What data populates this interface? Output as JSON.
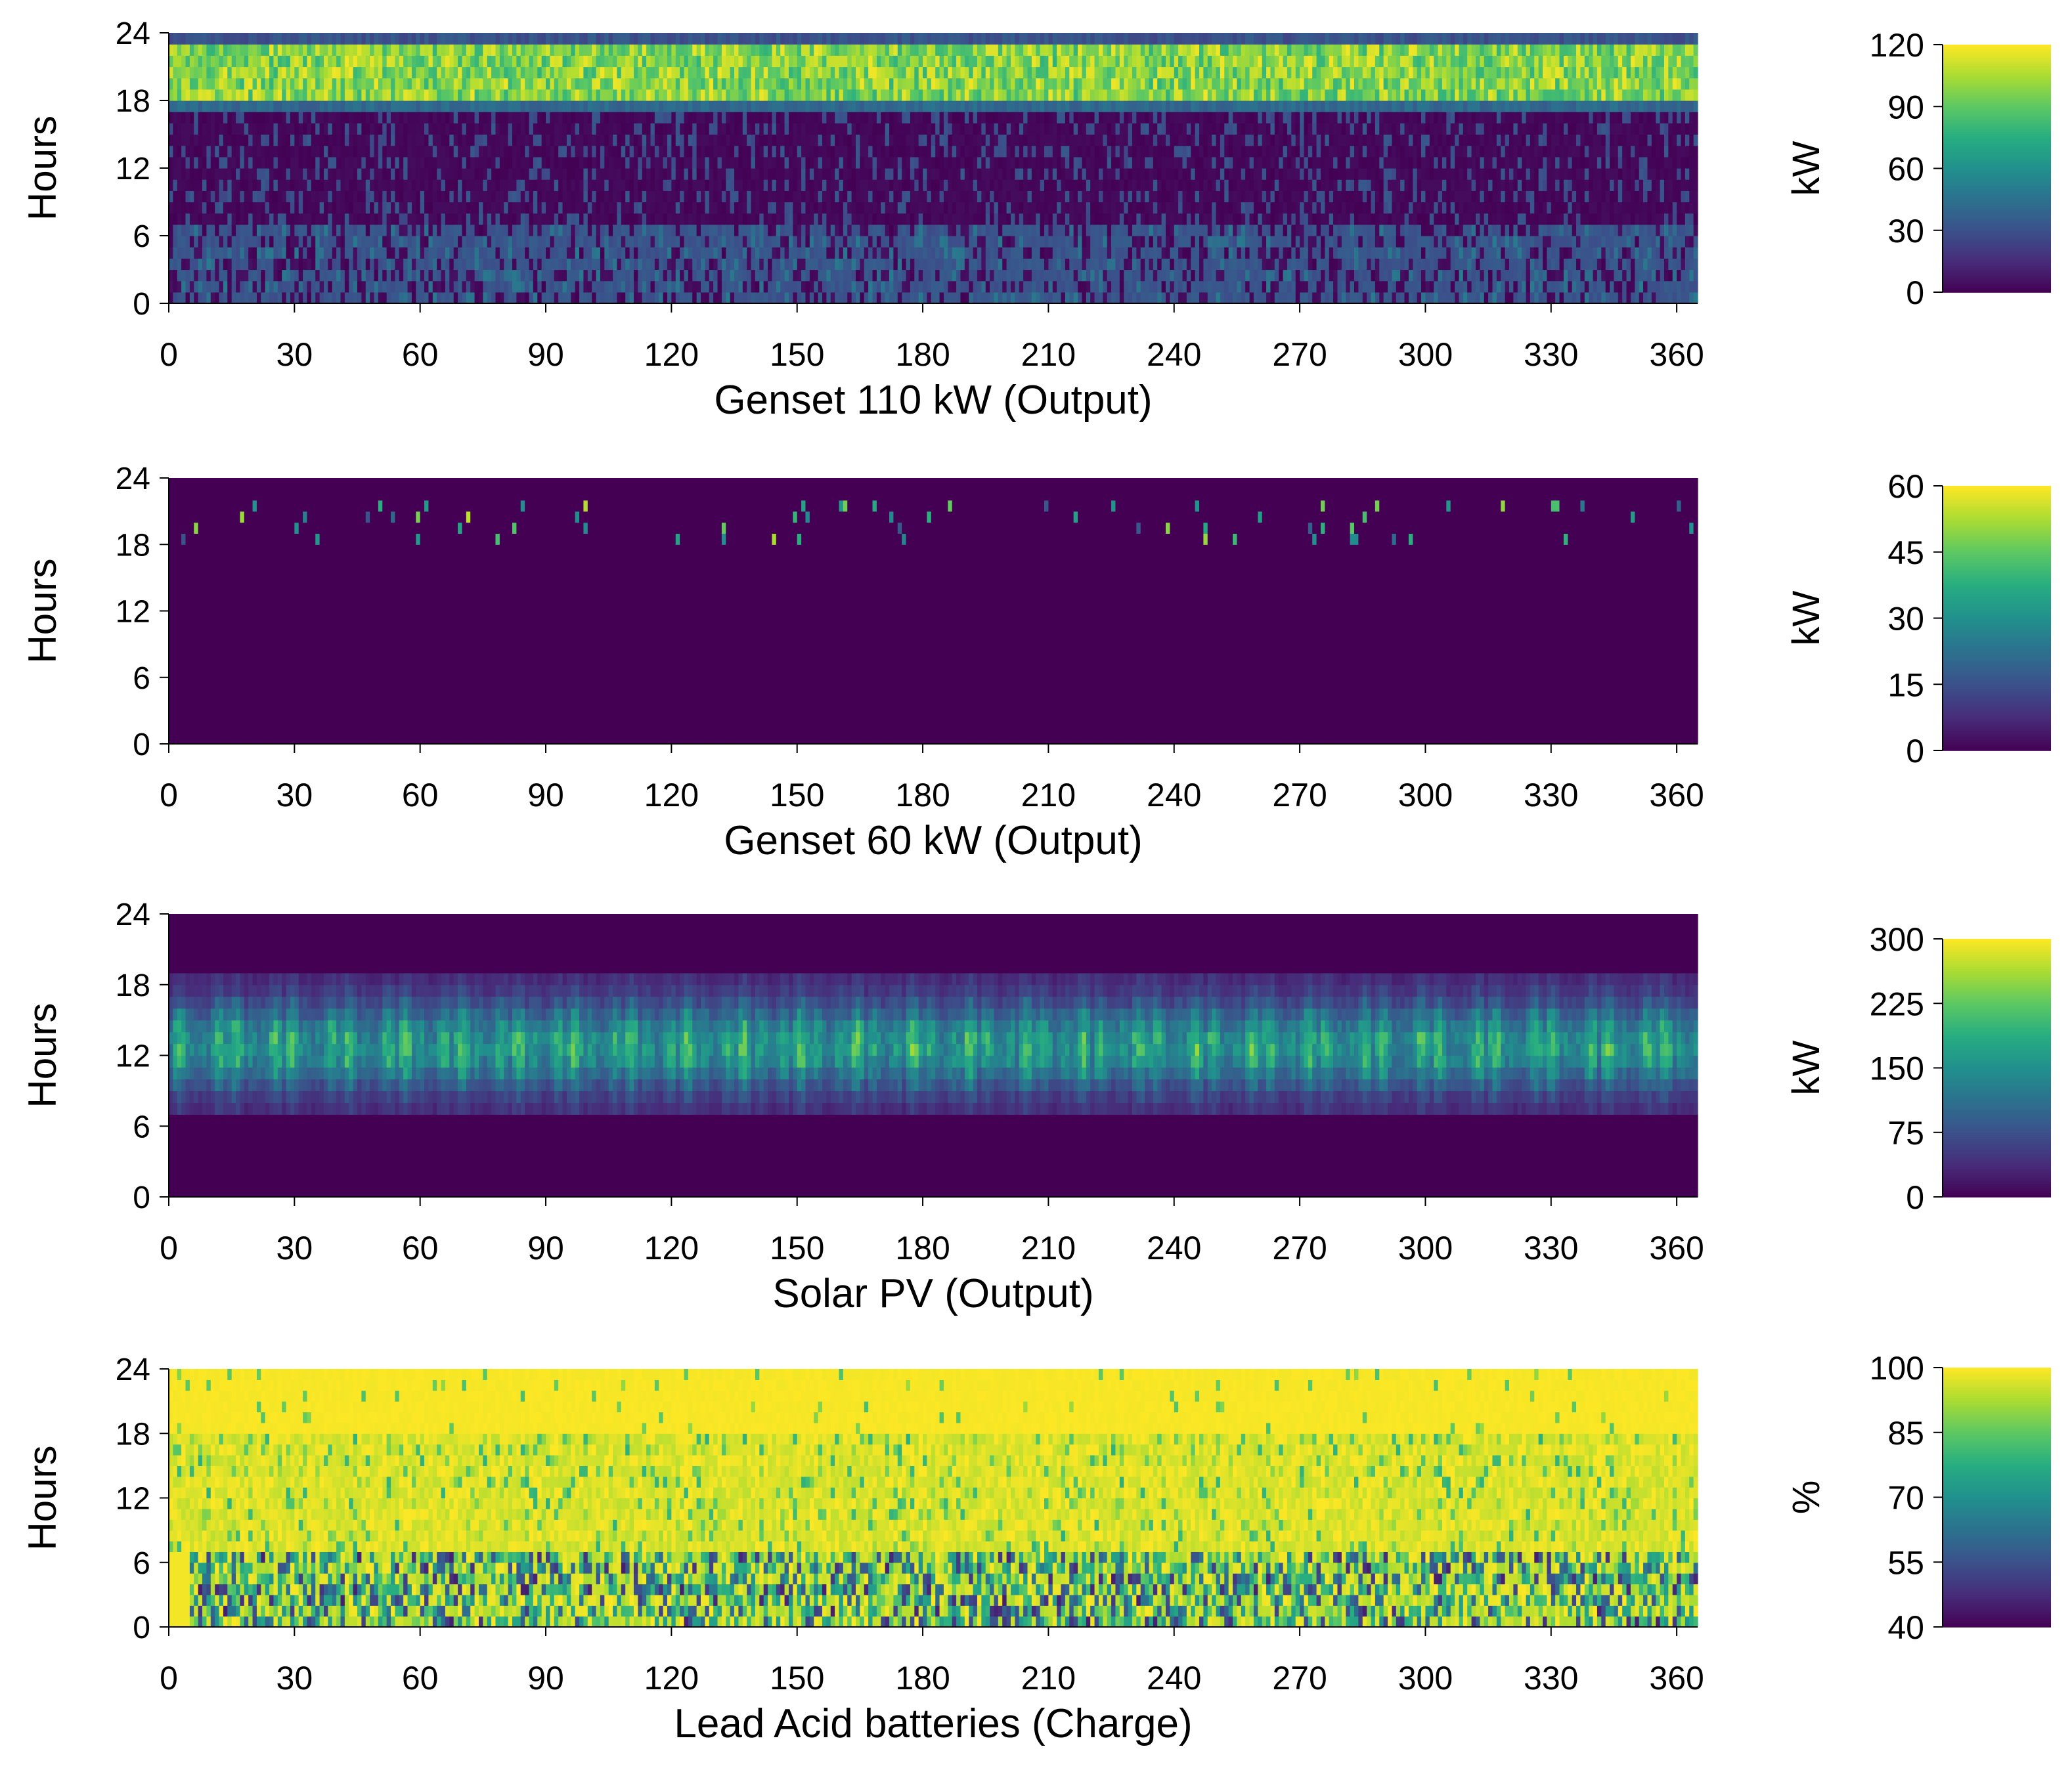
{
  "chart_data": [
    {
      "type": "heatmap",
      "title": "",
      "xlabel": "Genset 110 kW (Output)",
      "ylabel": "Hours",
      "x_ticks": [
        0,
        30,
        60,
        90,
        120,
        150,
        180,
        210,
        240,
        270,
        300,
        330,
        360
      ],
      "y_ticks": [
        0,
        6,
        12,
        18,
        24
      ],
      "xlim": [
        0,
        365
      ],
      "ylim": [
        0,
        24
      ],
      "colorbar": {
        "label": "kW",
        "min": 0,
        "max": 120,
        "ticks": [
          0,
          30,
          60,
          90,
          120
        ]
      },
      "colormap": "viridis",
      "hour_profile": [
        {
          "from": 0,
          "to": 7,
          "value": 30,
          "variation": "mixed low/off"
        },
        {
          "from": 7,
          "to": 17,
          "value": 0,
          "variation": "mostly off, sporadic 30"
        },
        {
          "from": 17,
          "to": 18,
          "value": 40
        },
        {
          "from": 18,
          "to": 23,
          "value": 100,
          "variation": "high 80-115"
        },
        {
          "from": 23,
          "to": 24,
          "value": 30
        }
      ]
    },
    {
      "type": "heatmap",
      "title": "",
      "xlabel": "Genset 60 kW (Output)",
      "ylabel": "Hours",
      "x_ticks": [
        0,
        30,
        60,
        90,
        120,
        150,
        180,
        210,
        240,
        270,
        300,
        330,
        360
      ],
      "y_ticks": [
        0,
        6,
        12,
        18,
        24
      ],
      "xlim": [
        0,
        365
      ],
      "ylim": [
        0,
        24
      ],
      "colorbar": {
        "label": "kW",
        "min": 0,
        "max": 60,
        "ticks": [
          0,
          15,
          30,
          45,
          60
        ]
      },
      "colormap": "viridis",
      "hour_profile": [
        {
          "from": 0,
          "to": 18,
          "value": 0
        },
        {
          "from": 18,
          "to": 22,
          "value": 0,
          "variation": "sparse 15-55 spikes"
        },
        {
          "from": 22,
          "to": 24,
          "value": 0
        }
      ]
    },
    {
      "type": "heatmap",
      "title": "",
      "xlabel": "Solar PV (Output)",
      "ylabel": "Hours",
      "x_ticks": [
        0,
        30,
        60,
        90,
        120,
        150,
        180,
        210,
        240,
        270,
        300,
        330,
        360
      ],
      "y_ticks": [
        0,
        6,
        12,
        18,
        24
      ],
      "xlim": [
        0,
        365
      ],
      "ylim": [
        0,
        24
      ],
      "colorbar": {
        "label": "kW",
        "min": 0,
        "max": 300,
        "ticks": [
          0,
          75,
          150,
          225,
          300
        ]
      },
      "colormap": "viridis",
      "hour_profile": [
        {
          "from": 0,
          "to": 7,
          "value": 0
        },
        {
          "from": 7,
          "to": 19,
          "value": 120,
          "variation": "bell-shaped daily peak ~200 at noon"
        },
        {
          "from": 19,
          "to": 24,
          "value": 0
        }
      ]
    },
    {
      "type": "heatmap",
      "title": "",
      "xlabel": "Lead Acid batteries (Charge)",
      "ylabel": "Hours",
      "x_ticks": [
        0,
        30,
        60,
        90,
        120,
        150,
        180,
        210,
        240,
        270,
        300,
        330,
        360
      ],
      "y_ticks": [
        0,
        6,
        12,
        18,
        24
      ],
      "xlim": [
        0,
        365
      ],
      "ylim": [
        0,
        24
      ],
      "colorbar": {
        "label": "%",
        "min": 40,
        "max": 100,
        "ticks": [
          40,
          55,
          70,
          85,
          100
        ]
      },
      "colormap": "viridis",
      "hour_profile": [
        {
          "from": 0,
          "to": 7,
          "value": 75,
          "variation": "frequent dips to 45-60"
        },
        {
          "from": 7,
          "to": 18,
          "value": 95,
          "variation": "occasional dips to 80"
        },
        {
          "from": 18,
          "to": 24,
          "value": 100
        }
      ]
    }
  ]
}
